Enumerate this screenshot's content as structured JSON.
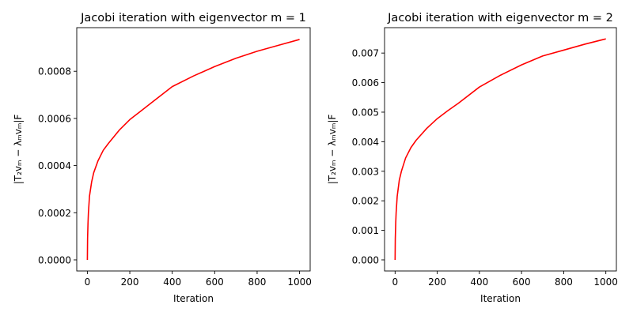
{
  "chart_data": [
    {
      "type": "line",
      "title": "Jacobi iteration with eigenvector m = 1",
      "xlabel": "Iteration",
      "ylabel": "|T₂vₘ − λₘvₘ|F",
      "xlim": [
        -50,
        1050
      ],
      "ylim": [
        -4.7e-05,
        0.000985
      ],
      "xticks": [
        0,
        200,
        400,
        600,
        800,
        1000
      ],
      "xtick_labels": [
        "0",
        "200",
        "400",
        "600",
        "800",
        "1000"
      ],
      "yticks": [
        0,
        0.0002,
        0.0004,
        0.0006,
        0.0008
      ],
      "ytick_labels": [
        "0.0000",
        "0.0002",
        "0.0004",
        "0.0006",
        "0.0008"
      ],
      "grid": false,
      "color": "#ff0000",
      "series": [
        {
          "x": [
            0,
            1,
            3,
            5,
            10,
            20,
            30,
            50,
            75,
            100,
            150,
            200,
            250,
            300,
            400,
            500,
            600,
            700,
            800,
            900,
            1000
          ],
          "values": [
            0,
            9e-05,
            0.000155,
            0.0002,
            0.00027,
            0.00033,
            0.00037,
            0.00042,
            0.000465,
            0.000495,
            0.00055,
            0.000595,
            0.00063,
            0.000665,
            0.000735,
            0.00078,
            0.00082,
            0.000855,
            0.000885,
            0.00091,
            0.000935
          ]
        }
      ]
    },
    {
      "type": "line",
      "title": "Jacobi iteration with eigenvector m = 2",
      "xlabel": "Iteration",
      "ylabel": "|T₂vₘ − λₘvₘ|F",
      "xlim": [
        -50,
        1050
      ],
      "ylim": [
        -0.000375,
        0.00786
      ],
      "xticks": [
        0,
        200,
        400,
        600,
        800,
        1000
      ],
      "xtick_labels": [
        "0",
        "200",
        "400",
        "600",
        "800",
        "1000"
      ],
      "yticks": [
        0,
        0.001,
        0.002,
        0.003,
        0.004,
        0.005,
        0.006,
        0.007
      ],
      "ytick_labels": [
        "0.000",
        "0.001",
        "0.002",
        "0.003",
        "0.004",
        "0.005",
        "0.006",
        "0.007"
      ],
      "grid": false,
      "color": "#ff0000",
      "series": [
        {
          "x": [
            0,
            1,
            3,
            5,
            10,
            20,
            30,
            50,
            75,
            100,
            150,
            200,
            250,
            300,
            400,
            500,
            600,
            700,
            800,
            900,
            1000
          ],
          "values": [
            0,
            0.00072,
            0.00125,
            0.0016,
            0.00215,
            0.0027,
            0.003,
            0.00345,
            0.0038,
            0.00405,
            0.00445,
            0.00478,
            0.00505,
            0.0053,
            0.00585,
            0.00625,
            0.0066,
            0.0069,
            0.0071,
            0.0073,
            0.00748
          ]
        }
      ]
    }
  ]
}
